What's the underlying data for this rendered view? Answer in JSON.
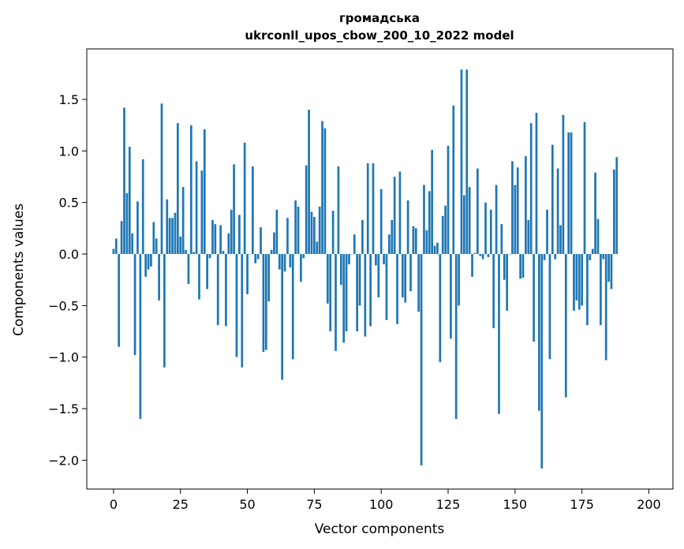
{
  "chart_data": {
    "type": "bar",
    "title_line1": "громадська",
    "title_line2": "ukrconll_upos_cbow_200_10_2022 model",
    "xlabel": "Vector components",
    "ylabel": "Components values",
    "xlim": [
      -10,
      209
    ],
    "ylim": [
      -2.28,
      1.99
    ],
    "xticks": [
      0,
      25,
      50,
      75,
      100,
      125,
      150,
      175,
      200
    ],
    "xtick_labels": [
      "0",
      "25",
      "50",
      "75",
      "100",
      "125",
      "150",
      "175",
      "200"
    ],
    "yticks": [
      -2.0,
      -1.5,
      -1.0,
      -0.5,
      0.0,
      0.5,
      1.0,
      1.5
    ],
    "ytick_labels": [
      "−2.0",
      "−1.5",
      "−1.0",
      "−0.5",
      "0.0",
      "0.5",
      "1.0",
      "1.5"
    ],
    "bar_color": "#1f77b4",
    "values": [
      0.05,
      0.15,
      -0.9,
      0.32,
      1.42,
      0.59,
      1.04,
      0.2,
      -0.98,
      0.51,
      -1.6,
      0.92,
      -0.22,
      -0.15,
      -0.12,
      0.31,
      0.15,
      -0.45,
      1.46,
      -1.1,
      0.53,
      0.35,
      0.35,
      0.4,
      1.27,
      0.17,
      0.65,
      0.04,
      -0.29,
      1.25,
      0.02,
      0.9,
      -0.44,
      0.81,
      1.21,
      -0.34,
      -0.04,
      0.33,
      0.29,
      -0.69,
      0.28,
      0.03,
      -0.7,
      0.2,
      0.43,
      0.87,
      -1.0,
      0.38,
      -1.1,
      1.08,
      -0.39,
      0.0,
      0.85,
      -0.09,
      -0.05,
      0.26,
      -0.95,
      -0.93,
      -0.46,
      0.04,
      0.21,
      0.43,
      -0.15,
      -1.22,
      -0.17,
      0.35,
      -0.13,
      -1.02,
      0.52,
      0.46,
      -0.27,
      -0.04,
      0.86,
      1.4,
      0.41,
      0.36,
      0.12,
      0.46,
      1.29,
      1.22,
      -0.48,
      -0.75,
      0.42,
      -0.94,
      0.85,
      -0.3,
      -0.86,
      -0.75,
      -0.1,
      0.0,
      0.19,
      -0.75,
      -0.5,
      0.33,
      -0.8,
      0.88,
      -0.7,
      0.88,
      -0.11,
      -0.42,
      0.63,
      -0.1,
      -0.64,
      0.19,
      0.33,
      0.75,
      -0.68,
      0.8,
      -0.42,
      -0.47,
      0.52,
      -0.36,
      0.27,
      0.25,
      -0.56,
      -2.05,
      0.67,
      0.23,
      0.61,
      1.01,
      0.08,
      0.11,
      -1.05,
      0.37,
      0.47,
      1.05,
      -0.82,
      1.44,
      -1.6,
      -0.5,
      1.79,
      0.57,
      1.79,
      0.65,
      -0.22,
      0.01,
      0.83,
      -0.02,
      -0.05,
      0.5,
      -0.03,
      0.43,
      -0.72,
      0.67,
      -1.55,
      0.29,
      -0.25,
      -0.55,
      0.0,
      0.9,
      0.67,
      0.84,
      -0.24,
      -0.23,
      0.95,
      0.33,
      1.27,
      -0.85,
      1.37,
      -1.52,
      -2.08,
      -0.06,
      0.43,
      -1.02,
      1.06,
      -0.05,
      0.83,
      0.28,
      1.35,
      -1.39,
      1.18,
      1.18,
      -0.55,
      -0.45,
      -0.54,
      -0.5,
      1.28,
      -0.69,
      -0.06,
      0.05,
      0.79,
      0.34,
      -0.69,
      -0.05,
      -1.03,
      -0.27,
      -0.34,
      0.82,
      0.94
    ]
  }
}
